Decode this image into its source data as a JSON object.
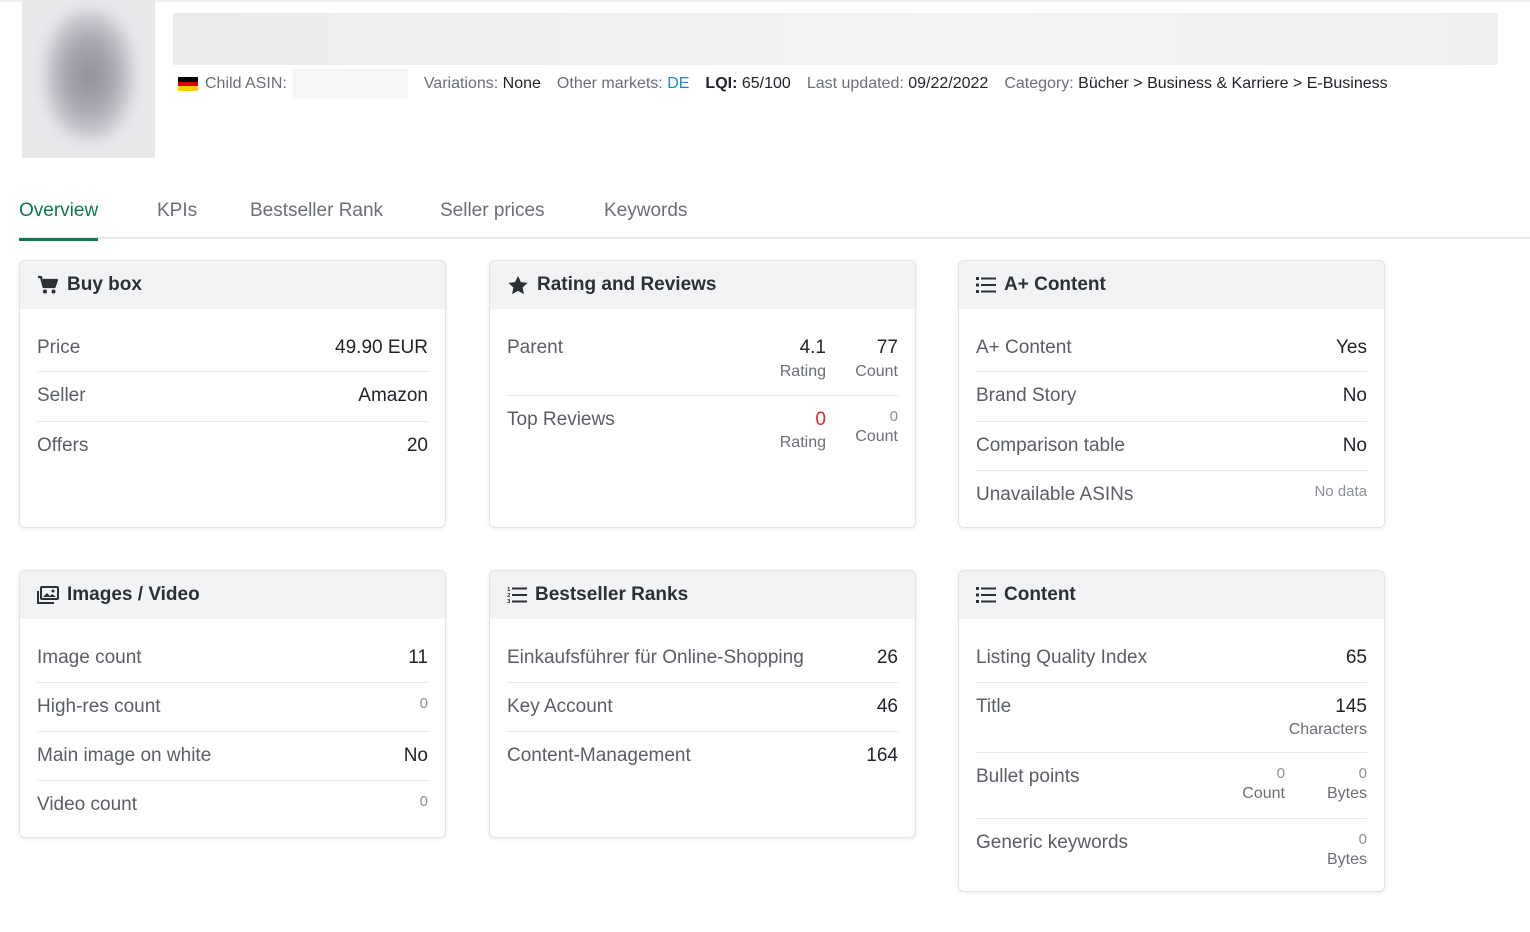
{
  "header": {
    "asin_label": "Child ASIN:",
    "variations_label": "Variations:",
    "variations_value": "None",
    "markets_label": "Other markets:",
    "markets_value": "DE",
    "lqi_label": "LQI:",
    "lqi_value": "65/100",
    "updated_label": "Last updated:",
    "updated_value": "09/22/2022",
    "category_label": "Category:",
    "category_value": "Bücher > Business & Karriere > E-Business"
  },
  "tabs": [
    "Overview",
    "KPIs",
    "Bestseller Rank",
    "Seller prices",
    "Keywords"
  ],
  "buy_box": {
    "title": "Buy box",
    "rows": [
      {
        "label": "Price",
        "value": "49.90 EUR"
      },
      {
        "label": "Seller",
        "value": "Amazon"
      },
      {
        "label": "Offers",
        "value": "20"
      }
    ]
  },
  "reviews": {
    "title": "Rating and Reviews",
    "parent_label": "Parent",
    "parent_rating": "4.1",
    "parent_count": "77",
    "top_label": "Top Reviews",
    "top_rating": "0",
    "top_count": "0",
    "rating_sub": "Rating",
    "count_sub": "Count"
  },
  "aplus": {
    "title": "A+ Content",
    "rows": [
      {
        "label": "A+ Content",
        "value": "Yes"
      },
      {
        "label": "Brand Story",
        "value": "No"
      },
      {
        "label": "Comparison table",
        "value": "No"
      },
      {
        "label": "Unavailable ASINs",
        "value": "No data"
      }
    ]
  },
  "images": {
    "title": "Images / Video",
    "rows": [
      {
        "label": "Image count",
        "value": "11"
      },
      {
        "label": "High-res count",
        "value": "0"
      },
      {
        "label": "Main image on white",
        "value": "No"
      },
      {
        "label": "Video count",
        "value": "0"
      }
    ]
  },
  "bsr": {
    "title": "Bestseller Ranks",
    "rows": [
      {
        "label": "Einkaufsführer für Online-Shopping",
        "value": "26"
      },
      {
        "label": "Key Account",
        "value": "46"
      },
      {
        "label": "Content-Management",
        "value": "164"
      }
    ]
  },
  "content": {
    "title": "Content",
    "lqi_label": "Listing Quality Index",
    "lqi_value": "65",
    "title_label": "Title",
    "title_value": "145",
    "title_sub": "Characters",
    "bullets_label": "Bullet points",
    "bullets_count": "0",
    "bullets_count_sub": "Count",
    "bullets_bytes": "0",
    "bullets_bytes_sub": "Bytes",
    "keywords_label": "Generic keywords",
    "keywords_bytes": "0",
    "keywords_sub": "Bytes"
  }
}
